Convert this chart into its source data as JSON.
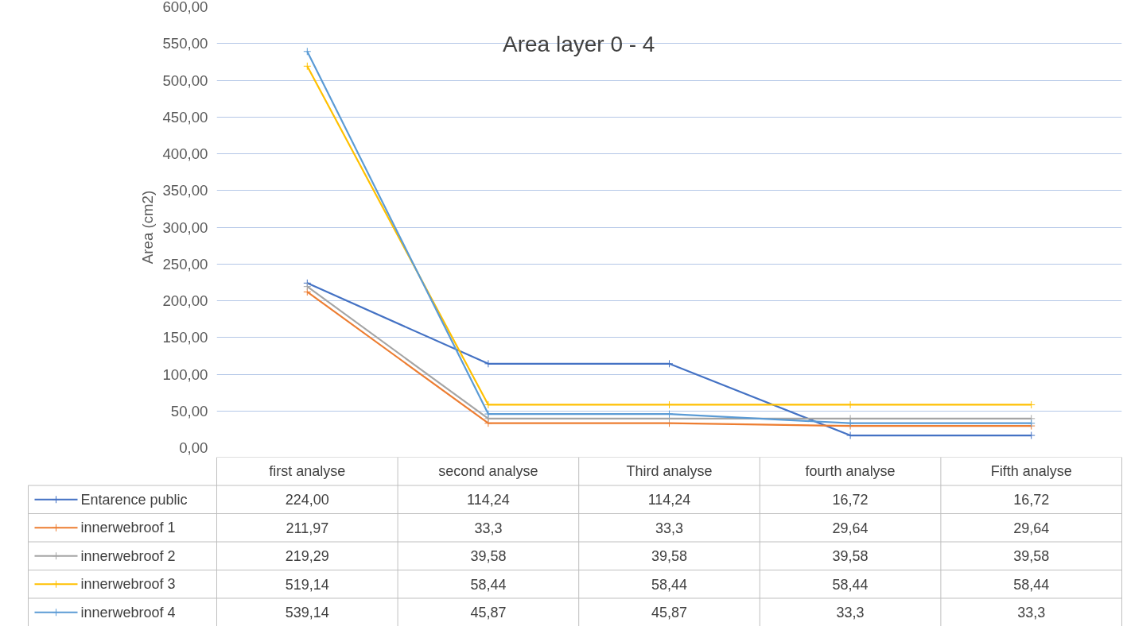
{
  "chart_data": {
    "type": "line",
    "title": "Area layer 0 - 4",
    "ylabel": "Area (cm2)",
    "categories": [
      "first analyse",
      "second analyse",
      "Third analyse",
      "fourth analyse",
      "Fifth analyse"
    ],
    "ylim": [
      0,
      600
    ],
    "yticks": [
      {
        "value": 0,
        "label": "0,00"
      },
      {
        "value": 50,
        "label": "50,00"
      },
      {
        "value": 100,
        "label": "100,00"
      },
      {
        "value": 150,
        "label": "150,00"
      },
      {
        "value": 200,
        "label": "200,00"
      },
      {
        "value": 250,
        "label": "250,00"
      },
      {
        "value": 300,
        "label": "300,00"
      },
      {
        "value": 350,
        "label": "350,00"
      },
      {
        "value": 400,
        "label": "400,00"
      },
      {
        "value": 450,
        "label": "450,00"
      },
      {
        "value": 500,
        "label": "500,00"
      },
      {
        "value": 550,
        "label": "550,00"
      },
      {
        "value": 600,
        "label": "600,00"
      }
    ],
    "grid": "y",
    "legend": "bottom",
    "marker": "cross",
    "series": [
      {
        "name": "Entarence public",
        "color": "#4472c4",
        "values": [
          224.0,
          114.24,
          114.24,
          16.72,
          16.72
        ],
        "value_labels": [
          "224,00",
          "114,24",
          "114,24",
          "16,72",
          "16,72"
        ]
      },
      {
        "name": "innerwebroof 1",
        "color": "#ed7d31",
        "values": [
          211.97,
          33.3,
          33.3,
          29.64,
          29.64
        ],
        "value_labels": [
          "211,97",
          "33,3",
          "33,3",
          "29,64",
          "29,64"
        ]
      },
      {
        "name": "innerwebroof 2",
        "color": "#a5a5a5",
        "values": [
          219.29,
          39.58,
          39.58,
          39.58,
          39.58
        ],
        "value_labels": [
          "219,29",
          "39,58",
          "39,58",
          "39,58",
          "39,58"
        ]
      },
      {
        "name": "innerwebroof 3",
        "color": "#ffc000",
        "values": [
          519.14,
          58.44,
          58.44,
          58.44,
          58.44
        ],
        "value_labels": [
          "519,14",
          "58,44",
          "58,44",
          "58,44",
          "58,44"
        ]
      },
      {
        "name": "innerwebroof 4",
        "color": "#5b9bd5",
        "values": [
          539.14,
          45.87,
          45.87,
          33.3,
          33.3
        ],
        "value_labels": [
          "539,14",
          "45,87",
          "45,87",
          "33,3",
          "33,3"
        ]
      }
    ]
  }
}
